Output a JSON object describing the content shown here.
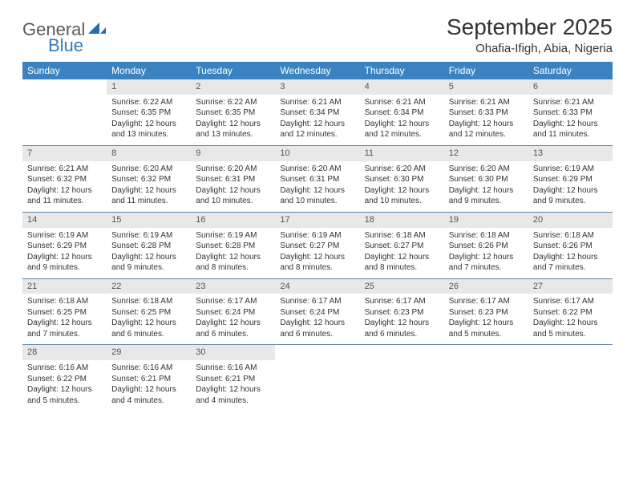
{
  "logo": {
    "text1": "General",
    "text2": "Blue"
  },
  "title": "September 2025",
  "location": "Ohafia-Ifigh, Abia, Nigeria",
  "colors": {
    "header_bg": "#3b83c0",
    "header_text": "#ffffff",
    "daynum_bg": "#e8e8e8",
    "daynum_text": "#555555",
    "body_text": "#333333",
    "rule": "#5b84a8",
    "logo_gray": "#5a5a5a",
    "logo_blue": "#2f7bbf"
  },
  "weekdays": [
    "Sunday",
    "Monday",
    "Tuesday",
    "Wednesday",
    "Thursday",
    "Friday",
    "Saturday"
  ],
  "weeks": [
    [
      {
        "empty": true
      },
      {
        "num": "1",
        "sunrise": "6:22 AM",
        "sunset": "6:35 PM",
        "daylight": "12 hours and 13 minutes."
      },
      {
        "num": "2",
        "sunrise": "6:22 AM",
        "sunset": "6:35 PM",
        "daylight": "12 hours and 13 minutes."
      },
      {
        "num": "3",
        "sunrise": "6:21 AM",
        "sunset": "6:34 PM",
        "daylight": "12 hours and 12 minutes."
      },
      {
        "num": "4",
        "sunrise": "6:21 AM",
        "sunset": "6:34 PM",
        "daylight": "12 hours and 12 minutes."
      },
      {
        "num": "5",
        "sunrise": "6:21 AM",
        "sunset": "6:33 PM",
        "daylight": "12 hours and 12 minutes."
      },
      {
        "num": "6",
        "sunrise": "6:21 AM",
        "sunset": "6:33 PM",
        "daylight": "12 hours and 11 minutes."
      }
    ],
    [
      {
        "num": "7",
        "sunrise": "6:21 AM",
        "sunset": "6:32 PM",
        "daylight": "12 hours and 11 minutes."
      },
      {
        "num": "8",
        "sunrise": "6:20 AM",
        "sunset": "6:32 PM",
        "daylight": "12 hours and 11 minutes."
      },
      {
        "num": "9",
        "sunrise": "6:20 AM",
        "sunset": "6:31 PM",
        "daylight": "12 hours and 10 minutes."
      },
      {
        "num": "10",
        "sunrise": "6:20 AM",
        "sunset": "6:31 PM",
        "daylight": "12 hours and 10 minutes."
      },
      {
        "num": "11",
        "sunrise": "6:20 AM",
        "sunset": "6:30 PM",
        "daylight": "12 hours and 10 minutes."
      },
      {
        "num": "12",
        "sunrise": "6:20 AM",
        "sunset": "6:30 PM",
        "daylight": "12 hours and 9 minutes."
      },
      {
        "num": "13",
        "sunrise": "6:19 AM",
        "sunset": "6:29 PM",
        "daylight": "12 hours and 9 minutes."
      }
    ],
    [
      {
        "num": "14",
        "sunrise": "6:19 AM",
        "sunset": "6:29 PM",
        "daylight": "12 hours and 9 minutes."
      },
      {
        "num": "15",
        "sunrise": "6:19 AM",
        "sunset": "6:28 PM",
        "daylight": "12 hours and 9 minutes."
      },
      {
        "num": "16",
        "sunrise": "6:19 AM",
        "sunset": "6:28 PM",
        "daylight": "12 hours and 8 minutes."
      },
      {
        "num": "17",
        "sunrise": "6:19 AM",
        "sunset": "6:27 PM",
        "daylight": "12 hours and 8 minutes."
      },
      {
        "num": "18",
        "sunrise": "6:18 AM",
        "sunset": "6:27 PM",
        "daylight": "12 hours and 8 minutes."
      },
      {
        "num": "19",
        "sunrise": "6:18 AM",
        "sunset": "6:26 PM",
        "daylight": "12 hours and 7 minutes."
      },
      {
        "num": "20",
        "sunrise": "6:18 AM",
        "sunset": "6:26 PM",
        "daylight": "12 hours and 7 minutes."
      }
    ],
    [
      {
        "num": "21",
        "sunrise": "6:18 AM",
        "sunset": "6:25 PM",
        "daylight": "12 hours and 7 minutes."
      },
      {
        "num": "22",
        "sunrise": "6:18 AM",
        "sunset": "6:25 PM",
        "daylight": "12 hours and 6 minutes."
      },
      {
        "num": "23",
        "sunrise": "6:17 AM",
        "sunset": "6:24 PM",
        "daylight": "12 hours and 6 minutes."
      },
      {
        "num": "24",
        "sunrise": "6:17 AM",
        "sunset": "6:24 PM",
        "daylight": "12 hours and 6 minutes."
      },
      {
        "num": "25",
        "sunrise": "6:17 AM",
        "sunset": "6:23 PM",
        "daylight": "12 hours and 6 minutes."
      },
      {
        "num": "26",
        "sunrise": "6:17 AM",
        "sunset": "6:23 PM",
        "daylight": "12 hours and 5 minutes."
      },
      {
        "num": "27",
        "sunrise": "6:17 AM",
        "sunset": "6:22 PM",
        "daylight": "12 hours and 5 minutes."
      }
    ],
    [
      {
        "num": "28",
        "sunrise": "6:16 AM",
        "sunset": "6:22 PM",
        "daylight": "12 hours and 5 minutes."
      },
      {
        "num": "29",
        "sunrise": "6:16 AM",
        "sunset": "6:21 PM",
        "daylight": "12 hours and 4 minutes."
      },
      {
        "num": "30",
        "sunrise": "6:16 AM",
        "sunset": "6:21 PM",
        "daylight": "12 hours and 4 minutes."
      },
      {
        "empty": true
      },
      {
        "empty": true
      },
      {
        "empty": true
      },
      {
        "empty": true
      }
    ]
  ],
  "labels": {
    "sunrise_prefix": "Sunrise: ",
    "sunset_prefix": "Sunset: ",
    "daylight_prefix": "Daylight: "
  }
}
